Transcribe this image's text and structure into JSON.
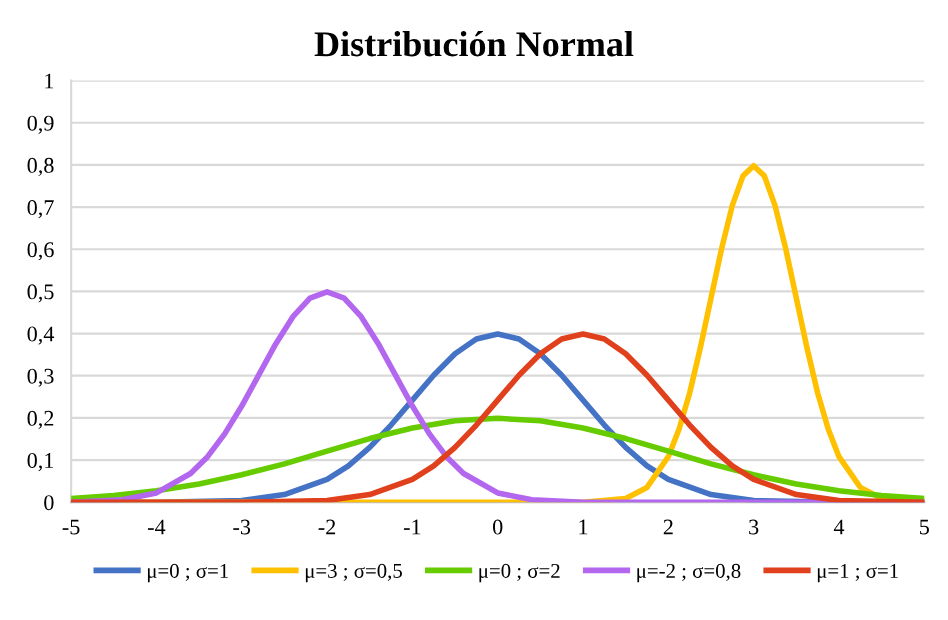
{
  "chart_data": {
    "type": "line",
    "title": "Distribución Normal",
    "xlim": [
      -5,
      5
    ],
    "xticks": [
      -5,
      -4,
      -3,
      -2,
      -1,
      0,
      1,
      2,
      3,
      4,
      5
    ],
    "ylim": [
      0,
      1
    ],
    "yticks": [
      0,
      {
        "value": 0.1,
        "label": "0,1"
      },
      {
        "value": 0.2,
        "label": "0,2"
      },
      {
        "value": 0.3,
        "label": "0,3"
      },
      {
        "value": 0.4,
        "label": "0,4"
      },
      {
        "value": 0.5,
        "label": "0,5"
      },
      {
        "value": 0.6,
        "label": "0,6"
      },
      {
        "value": 0.7,
        "label": "0,7"
      },
      {
        "value": 0.8,
        "label": "0,8"
      },
      {
        "value": 0.9,
        "label": "0,9"
      },
      1
    ],
    "grid": "y",
    "legend": "bottom",
    "marker": "none",
    "line_style": "solid",
    "series": [
      {
        "name": "μ=0 ; σ=1",
        "color": "#4472c4",
        "x": [
          -5,
          -4,
          -3,
          -2.5,
          -2,
          -1.75,
          -1.5,
          -1.25,
          -1,
          -0.75,
          -0.5,
          -0.25,
          0,
          0.25,
          0.5,
          0.75,
          1,
          1.25,
          1.5,
          1.75,
          2,
          2.5,
          3,
          4,
          5
        ],
        "values": [
          0,
          0,
          0.004,
          0.018,
          0.054,
          0.086,
          0.13,
          0.183,
          0.242,
          0.301,
          0.352,
          0.387,
          0.399,
          0.387,
          0.352,
          0.301,
          0.242,
          0.183,
          0.13,
          0.086,
          0.054,
          0.018,
          0.004,
          0,
          0
        ]
      },
      {
        "name": "μ=3 ; σ=0,5",
        "color": "#ffc000",
        "x": [
          -5,
          0,
          1,
          1.5,
          1.75,
          2,
          2.125,
          2.25,
          2.375,
          2.5,
          2.625,
          2.75,
          2.875,
          3,
          3.125,
          3.25,
          3.375,
          3.5,
          3.625,
          3.75,
          3.875,
          4,
          4.25,
          4.5,
          5
        ],
        "values": [
          0,
          0,
          0,
          0.009,
          0.035,
          0.108,
          0.173,
          0.259,
          0.366,
          0.484,
          0.602,
          0.704,
          0.774,
          0.798,
          0.774,
          0.704,
          0.602,
          0.484,
          0.366,
          0.259,
          0.173,
          0.108,
          0.035,
          0.009,
          0
        ]
      },
      {
        "name": "μ=0 ; σ=2",
        "color": "#66cc00",
        "x": [
          -5,
          -4.5,
          -4,
          -3.5,
          -3,
          -2.5,
          -2,
          -1.5,
          -1,
          -0.5,
          0,
          0.5,
          1,
          1.5,
          2,
          2.5,
          3,
          3.5,
          4,
          4.5,
          5
        ],
        "values": [
          0.009,
          0.016,
          0.027,
          0.043,
          0.065,
          0.091,
          0.121,
          0.151,
          0.176,
          0.193,
          0.199,
          0.193,
          0.176,
          0.151,
          0.121,
          0.091,
          0.065,
          0.043,
          0.027,
          0.016,
          0.009
        ]
      },
      {
        "name": "μ=-2 ; σ=0,8",
        "color": "#b366ee",
        "x": [
          -5,
          -4.4,
          -4,
          -3.6,
          -3.4,
          -3.2,
          -3,
          -2.8,
          -2.6,
          -2.4,
          -2.2,
          -2,
          -1.8,
          -1.6,
          -1.4,
          -1.2,
          -1,
          -0.8,
          -0.6,
          -0.4,
          0,
          0.4,
          1,
          5
        ],
        "values": [
          0,
          0.006,
          0.022,
          0.068,
          0.108,
          0.162,
          0.228,
          0.302,
          0.376,
          0.44,
          0.484,
          0.499,
          0.484,
          0.44,
          0.376,
          0.302,
          0.228,
          0.162,
          0.108,
          0.068,
          0.022,
          0.006,
          0,
          0
        ]
      },
      {
        "name": "μ=1 ; σ=1",
        "color": "#e0401c",
        "x": [
          -5,
          -3,
          -2,
          -1.5,
          -1,
          -0.75,
          -0.5,
          -0.25,
          0,
          0.25,
          0.5,
          0.75,
          1,
          1.25,
          1.5,
          1.75,
          2,
          2.25,
          2.5,
          2.75,
          3,
          3.5,
          4,
          5
        ],
        "values": [
          0,
          0,
          0.004,
          0.018,
          0.054,
          0.086,
          0.13,
          0.183,
          0.242,
          0.301,
          0.352,
          0.387,
          0.399,
          0.387,
          0.352,
          0.301,
          0.242,
          0.183,
          0.13,
          0.086,
          0.054,
          0.018,
          0.004,
          0
        ]
      }
    ]
  }
}
